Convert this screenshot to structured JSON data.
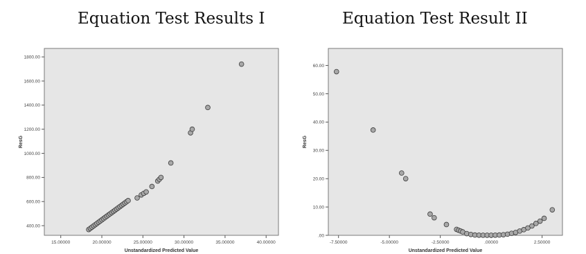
{
  "titles": {
    "left": "Equation Test Results I",
    "right": "Equation Test Result II"
  },
  "chart_data": [
    {
      "type": "scatter",
      "title": "Equation Test Results I",
      "xlabel": "Unstandardized Predicted Value",
      "ylabel": "ResG",
      "xlim": [
        13.0,
        41.5
      ],
      "ylim": [
        320,
        1870
      ],
      "x_ticks": [
        15,
        20,
        25,
        30,
        35,
        40
      ],
      "x_tick_labels": [
        "15.00000",
        "20.00000",
        "25.00000",
        "30.00000",
        "35.00000",
        "40.00000"
      ],
      "y_ticks": [
        400,
        600,
        800,
        1000,
        1200,
        1400,
        1600,
        1800
      ],
      "y_tick_labels": [
        "400.00",
        "600.00",
        "800.00",
        "1000.00",
        "1200.00",
        "1400.00",
        "1600.00",
        "1800.00"
      ],
      "x": [
        18.4,
        18.6,
        18.8,
        19.0,
        19.2,
        19.4,
        19.6,
        19.8,
        20.0,
        20.2,
        20.4,
        20.6,
        20.8,
        21.0,
        21.2,
        21.4,
        21.6,
        21.8,
        22.0,
        22.2,
        22.4,
        22.6,
        22.8,
        23.0,
        23.2,
        24.3,
        24.8,
        25.1,
        25.4,
        26.1,
        26.8,
        27.0,
        27.2,
        28.4,
        30.8,
        31.0,
        32.9,
        37.0
      ],
      "y": [
        368,
        378,
        388,
        398,
        408,
        418,
        428,
        438,
        448,
        458,
        468,
        478,
        488,
        498,
        508,
        518,
        528,
        538,
        548,
        558,
        568,
        578,
        588,
        598,
        608,
        630,
        655,
        668,
        680,
        725,
        770,
        785,
        800,
        920,
        1170,
        1200,
        1380,
        1740
      ]
    },
    {
      "type": "scatter",
      "title": "Equation Test Result II",
      "xlabel": "Unstandardized Predicted Value",
      "ylabel": "ResG",
      "xlim": [
        -8.0,
        3.5
      ],
      "ylim": [
        0,
        66
      ],
      "x_ticks": [
        -7.5,
        -5,
        -2.5,
        0,
        2.5
      ],
      "x_tick_labels": [
        "-7.50000",
        "-5.00000",
        "-2.50000",
        ".00000",
        "2.50000"
      ],
      "y_ticks": [
        0,
        10,
        20,
        30,
        40,
        50,
        60
      ],
      "y_tick_labels": [
        ".00",
        "10.00",
        "20.00",
        "30.00",
        "40.00",
        "50.00",
        "60.00"
      ],
      "x": [
        -7.6,
        -5.8,
        -4.4,
        -4.2,
        -3.0,
        -2.8,
        -2.2,
        -1.7,
        -1.6,
        -1.5,
        -1.4,
        -1.2,
        -1.0,
        -0.8,
        -0.6,
        -0.4,
        -0.2,
        0.0,
        0.2,
        0.4,
        0.6,
        0.8,
        1.0,
        1.2,
        1.4,
        1.6,
        1.8,
        2.0,
        2.2,
        2.4,
        2.6,
        3.0
      ],
      "y": [
        57.8,
        37.2,
        22.0,
        20.0,
        7.5,
        6.2,
        3.8,
        2.1,
        1.8,
        1.5,
        1.2,
        0.6,
        0.3,
        0.1,
        0.05,
        0.03,
        0.02,
        0.02,
        0.05,
        0.1,
        0.2,
        0.4,
        0.7,
        1.0,
        1.5,
        2.0,
        2.6,
        3.3,
        4.2,
        5.0,
        6.0,
        9.0
      ]
    }
  ]
}
